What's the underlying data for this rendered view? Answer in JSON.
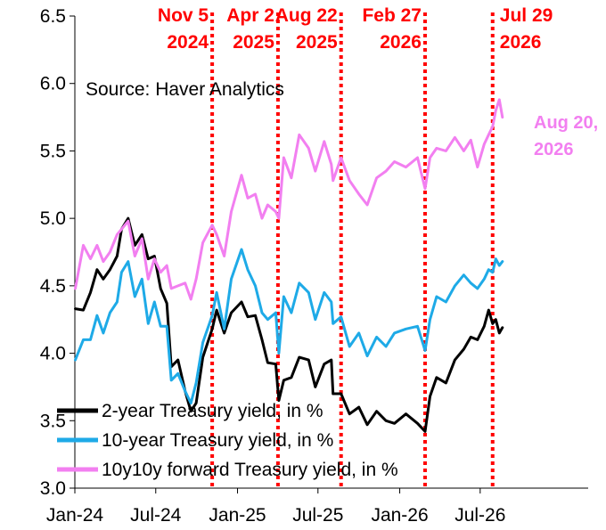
{
  "chart_data": {
    "type": "line",
    "title": "",
    "xlabel": "",
    "ylabel": "",
    "source": "Source: Haver Analytics",
    "ylim": [
      3.0,
      6.5
    ],
    "yticks": [
      "3.0",
      "3.5",
      "4.0",
      "4.5",
      "5.0",
      "5.5",
      "6.0",
      "6.5"
    ],
    "xlim": [
      "2024-01-01",
      "2027-03-01"
    ],
    "xticks": [
      {
        "date": "2024-01-01",
        "label": "Jan-24"
      },
      {
        "date": "2024-07-01",
        "label": "Jul-24"
      },
      {
        "date": "2025-01-01",
        "label": "Jan-25"
      },
      {
        "date": "2025-07-01",
        "label": "Jul-25"
      },
      {
        "date": "2026-01-01",
        "label": "Jan-26"
      },
      {
        "date": "2026-07-01",
        "label": "Jul-26"
      }
    ],
    "grid": false,
    "legend_position": "bottom-left",
    "colors": {
      "two_year": "#000000",
      "ten_year": "#1eaae7",
      "forward": "#f27ff0",
      "event": "#ff0000"
    },
    "events": [
      {
        "date": "2024-11-05",
        "line1": "Nov 5",
        "line2": "2024"
      },
      {
        "date": "2025-04-02",
        "line1": "Apr 2",
        "line2": "2025"
      },
      {
        "date": "2025-08-22",
        "line1": "Aug 22",
        "line2": "2025"
      },
      {
        "date": "2026-02-27",
        "line1": "Feb 27",
        "line2": "2026"
      },
      {
        "date": "2026-07-29",
        "line1": "Jul 29",
        "line2": "2026"
      }
    ],
    "end_annotation": {
      "line1": "Aug 20,",
      "line2": "2026"
    },
    "series": [
      {
        "key": "two_year",
        "name": "2-year Treasury yield, in %",
        "points": [
          [
            "2024-01-02",
            4.33
          ],
          [
            "2024-01-20",
            4.32
          ],
          [
            "2024-02-05",
            4.45
          ],
          [
            "2024-02-20",
            4.62
          ],
          [
            "2024-03-05",
            4.55
          ],
          [
            "2024-03-20",
            4.62
          ],
          [
            "2024-04-05",
            4.72
          ],
          [
            "2024-04-15",
            4.92
          ],
          [
            "2024-04-30",
            5.0
          ],
          [
            "2024-05-15",
            4.8
          ],
          [
            "2024-05-31",
            4.88
          ],
          [
            "2024-06-14",
            4.7
          ],
          [
            "2024-06-28",
            4.72
          ],
          [
            "2024-07-12",
            4.48
          ],
          [
            "2024-07-26",
            4.37
          ],
          [
            "2024-08-05",
            3.9
          ],
          [
            "2024-08-20",
            3.95
          ],
          [
            "2024-09-05",
            3.72
          ],
          [
            "2024-09-18",
            3.57
          ],
          [
            "2024-09-30",
            3.63
          ],
          [
            "2024-10-15",
            3.97
          ],
          [
            "2024-11-05",
            4.18
          ],
          [
            "2024-11-15",
            4.32
          ],
          [
            "2024-12-02",
            4.15
          ],
          [
            "2024-12-18",
            4.3
          ],
          [
            "2025-01-10",
            4.38
          ],
          [
            "2025-01-24",
            4.27
          ],
          [
            "2025-02-10",
            4.28
          ],
          [
            "2025-02-25",
            4.1
          ],
          [
            "2025-03-10",
            3.93
          ],
          [
            "2025-03-28",
            3.92
          ],
          [
            "2025-04-04",
            3.65
          ],
          [
            "2025-04-15",
            3.8
          ],
          [
            "2025-05-02",
            3.82
          ],
          [
            "2025-05-20",
            3.97
          ],
          [
            "2025-06-10",
            3.95
          ],
          [
            "2025-06-25",
            3.75
          ],
          [
            "2025-07-15",
            3.92
          ],
          [
            "2025-07-31",
            3.95
          ],
          [
            "2025-08-04",
            3.7
          ],
          [
            "2025-08-22",
            3.7
          ],
          [
            "2025-09-10",
            3.55
          ],
          [
            "2025-10-01",
            3.6
          ],
          [
            "2025-10-20",
            3.47
          ],
          [
            "2025-11-10",
            3.57
          ],
          [
            "2025-12-01",
            3.5
          ],
          [
            "2025-12-20",
            3.48
          ],
          [
            "2026-01-15",
            3.55
          ],
          [
            "2026-02-10",
            3.48
          ],
          [
            "2026-02-27",
            3.42
          ],
          [
            "2026-03-10",
            3.68
          ],
          [
            "2026-03-25",
            3.82
          ],
          [
            "2026-04-15",
            3.78
          ],
          [
            "2026-05-05",
            3.95
          ],
          [
            "2026-05-25",
            4.03
          ],
          [
            "2026-06-10",
            4.12
          ],
          [
            "2026-06-25",
            4.1
          ],
          [
            "2026-07-10",
            4.2
          ],
          [
            "2026-07-20",
            4.32
          ],
          [
            "2026-07-29",
            4.22
          ],
          [
            "2026-08-05",
            4.25
          ],
          [
            "2026-08-13",
            4.15
          ],
          [
            "2026-08-20",
            4.19
          ]
        ]
      },
      {
        "key": "ten_year",
        "name": "10-year Treasury yield, in %",
        "points": [
          [
            "2024-01-02",
            3.95
          ],
          [
            "2024-01-20",
            4.1
          ],
          [
            "2024-02-05",
            4.1
          ],
          [
            "2024-02-20",
            4.28
          ],
          [
            "2024-03-05",
            4.15
          ],
          [
            "2024-03-20",
            4.3
          ],
          [
            "2024-04-05",
            4.38
          ],
          [
            "2024-04-15",
            4.6
          ],
          [
            "2024-04-30",
            4.68
          ],
          [
            "2024-05-15",
            4.42
          ],
          [
            "2024-05-31",
            4.55
          ],
          [
            "2024-06-14",
            4.22
          ],
          [
            "2024-06-28",
            4.38
          ],
          [
            "2024-07-12",
            4.2
          ],
          [
            "2024-07-26",
            4.2
          ],
          [
            "2024-08-05",
            3.8
          ],
          [
            "2024-08-20",
            3.85
          ],
          [
            "2024-09-05",
            3.72
          ],
          [
            "2024-09-18",
            3.63
          ],
          [
            "2024-09-30",
            3.78
          ],
          [
            "2024-10-15",
            4.08
          ],
          [
            "2024-11-05",
            4.28
          ],
          [
            "2024-11-15",
            4.45
          ],
          [
            "2024-12-02",
            4.18
          ],
          [
            "2024-12-18",
            4.55
          ],
          [
            "2025-01-10",
            4.77
          ],
          [
            "2025-01-24",
            4.62
          ],
          [
            "2025-02-10",
            4.5
          ],
          [
            "2025-02-25",
            4.3
          ],
          [
            "2025-03-10",
            4.25
          ],
          [
            "2025-03-28",
            4.3
          ],
          [
            "2025-04-04",
            4.0
          ],
          [
            "2025-04-15",
            4.42
          ],
          [
            "2025-05-02",
            4.3
          ],
          [
            "2025-05-20",
            4.52
          ],
          [
            "2025-06-10",
            4.45
          ],
          [
            "2025-06-25",
            4.25
          ],
          [
            "2025-07-15",
            4.45
          ],
          [
            "2025-07-31",
            4.38
          ],
          [
            "2025-08-04",
            4.22
          ],
          [
            "2025-08-22",
            4.27
          ],
          [
            "2025-09-10",
            4.05
          ],
          [
            "2025-10-01",
            4.15
          ],
          [
            "2025-10-20",
            3.98
          ],
          [
            "2025-11-10",
            4.12
          ],
          [
            "2025-12-01",
            4.05
          ],
          [
            "2025-12-20",
            4.15
          ],
          [
            "2026-01-15",
            4.18
          ],
          [
            "2026-02-10",
            4.2
          ],
          [
            "2026-02-27",
            4.02
          ],
          [
            "2026-03-10",
            4.25
          ],
          [
            "2026-03-25",
            4.42
          ],
          [
            "2026-04-15",
            4.38
          ],
          [
            "2026-05-05",
            4.5
          ],
          [
            "2026-05-25",
            4.58
          ],
          [
            "2026-06-10",
            4.52
          ],
          [
            "2026-06-25",
            4.48
          ],
          [
            "2026-07-10",
            4.55
          ],
          [
            "2026-07-20",
            4.62
          ],
          [
            "2026-07-29",
            4.6
          ],
          [
            "2026-08-05",
            4.7
          ],
          [
            "2026-08-13",
            4.65
          ],
          [
            "2026-08-20",
            4.68
          ]
        ]
      },
      {
        "key": "forward",
        "name": "10y10y forward Treasury yield, in %",
        "points": [
          [
            "2024-01-02",
            4.48
          ],
          [
            "2024-01-20",
            4.8
          ],
          [
            "2024-02-05",
            4.7
          ],
          [
            "2024-02-20",
            4.8
          ],
          [
            "2024-03-05",
            4.68
          ],
          [
            "2024-03-20",
            4.75
          ],
          [
            "2024-04-05",
            4.88
          ],
          [
            "2024-04-15",
            4.92
          ],
          [
            "2024-04-30",
            4.98
          ],
          [
            "2024-05-15",
            4.72
          ],
          [
            "2024-05-31",
            4.85
          ],
          [
            "2024-06-14",
            4.55
          ],
          [
            "2024-06-28",
            4.7
          ],
          [
            "2024-07-12",
            4.6
          ],
          [
            "2024-07-26",
            4.65
          ],
          [
            "2024-08-05",
            4.48
          ],
          [
            "2024-08-20",
            4.5
          ],
          [
            "2024-09-05",
            4.52
          ],
          [
            "2024-09-18",
            4.4
          ],
          [
            "2024-09-30",
            4.55
          ],
          [
            "2024-10-15",
            4.82
          ],
          [
            "2024-11-05",
            4.95
          ],
          [
            "2024-11-15",
            4.88
          ],
          [
            "2024-12-02",
            4.72
          ],
          [
            "2024-12-18",
            5.05
          ],
          [
            "2025-01-10",
            5.32
          ],
          [
            "2025-01-24",
            5.15
          ],
          [
            "2025-02-10",
            5.18
          ],
          [
            "2025-02-25",
            5.0
          ],
          [
            "2025-03-10",
            5.1
          ],
          [
            "2025-03-28",
            5.05
          ],
          [
            "2025-04-04",
            5.0
          ],
          [
            "2025-04-15",
            5.45
          ],
          [
            "2025-05-02",
            5.3
          ],
          [
            "2025-05-20",
            5.62
          ],
          [
            "2025-06-10",
            5.52
          ],
          [
            "2025-06-25",
            5.35
          ],
          [
            "2025-07-15",
            5.57
          ],
          [
            "2025-07-31",
            5.4
          ],
          [
            "2025-08-04",
            5.28
          ],
          [
            "2025-08-22",
            5.45
          ],
          [
            "2025-09-10",
            5.28
          ],
          [
            "2025-10-01",
            5.18
          ],
          [
            "2025-10-20",
            5.1
          ],
          [
            "2025-11-10",
            5.3
          ],
          [
            "2025-12-01",
            5.35
          ],
          [
            "2025-12-20",
            5.42
          ],
          [
            "2026-01-15",
            5.38
          ],
          [
            "2026-02-10",
            5.45
          ],
          [
            "2026-02-27",
            5.22
          ],
          [
            "2026-03-10",
            5.45
          ],
          [
            "2026-03-25",
            5.52
          ],
          [
            "2026-04-15",
            5.5
          ],
          [
            "2026-05-05",
            5.6
          ],
          [
            "2026-05-25",
            5.5
          ],
          [
            "2026-06-10",
            5.58
          ],
          [
            "2026-06-25",
            5.38
          ],
          [
            "2026-07-10",
            5.55
          ],
          [
            "2026-07-20",
            5.62
          ],
          [
            "2026-07-29",
            5.68
          ],
          [
            "2026-08-05",
            5.8
          ],
          [
            "2026-08-13",
            5.88
          ],
          [
            "2026-08-20",
            5.75
          ]
        ]
      }
    ]
  }
}
